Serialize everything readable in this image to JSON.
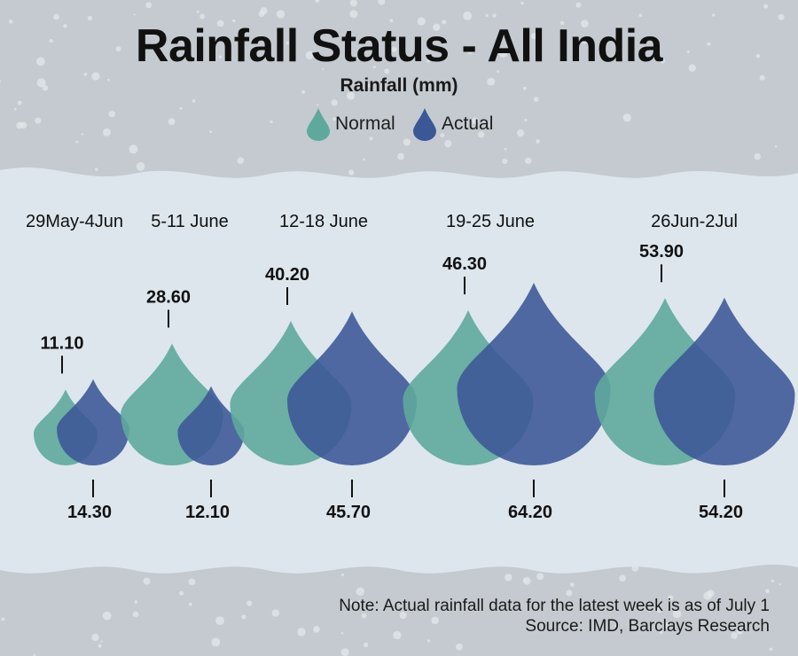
{
  "title": "Rainfall Status - All India",
  "subtitle": "Rainfall (mm)",
  "legend": {
    "normal_label": "Normal",
    "actual_label": "Actual"
  },
  "colors": {
    "normal": "#5ea89c",
    "actual": "#3b5796"
  },
  "footer": {
    "note": "Note: Actual rainfall data for the latest week is as of July 1",
    "source": "Source: IMD, Barclays Research"
  },
  "chart_data": {
    "type": "bar",
    "title": "Rainfall Status - All India",
    "ylabel": "Rainfall (mm)",
    "categories": [
      "29May-4Jun",
      "5-11 June",
      "12-18 June",
      "19-25 June",
      "26Jun-2Jul"
    ],
    "series": [
      {
        "name": "Normal",
        "values": [
          11.1,
          28.6,
          40.2,
          46.3,
          53.9
        ],
        "labels": [
          "11.10",
          "28.60",
          "40.20",
          "46.30",
          "53.90"
        ]
      },
      {
        "name": "Actual",
        "values": [
          14.3,
          12.1,
          45.7,
          64.2,
          54.2
        ],
        "labels": [
          "14.30",
          "12.10",
          "45.70",
          "64.20",
          "54.20"
        ]
      }
    ]
  }
}
